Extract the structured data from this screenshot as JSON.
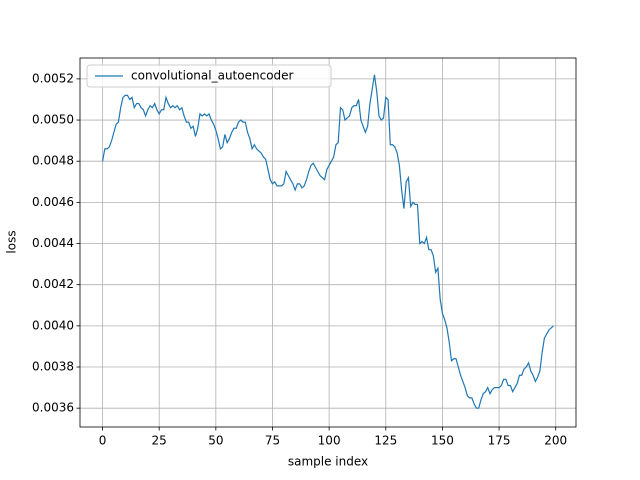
{
  "chart_data": {
    "type": "line",
    "xlabel": "sample index",
    "ylabel": "loss",
    "x": [
      0,
      1,
      2,
      3,
      4,
      5,
      6,
      7,
      8,
      9,
      10,
      11,
      12,
      13,
      14,
      15,
      16,
      17,
      18,
      19,
      20,
      21,
      22,
      23,
      24,
      25,
      26,
      27,
      28,
      29,
      30,
      31,
      32,
      33,
      34,
      35,
      36,
      37,
      38,
      39,
      40,
      41,
      42,
      43,
      44,
      45,
      46,
      47,
      48,
      49,
      50,
      51,
      52,
      53,
      54,
      55,
      56,
      57,
      58,
      59,
      60,
      61,
      62,
      63,
      64,
      65,
      66,
      67,
      68,
      69,
      70,
      71,
      72,
      73,
      74,
      75,
      76,
      77,
      78,
      79,
      80,
      81,
      82,
      83,
      84,
      85,
      86,
      87,
      88,
      89,
      90,
      91,
      92,
      93,
      94,
      95,
      96,
      97,
      98,
      99,
      100,
      101,
      102,
      103,
      104,
      105,
      106,
      107,
      108,
      109,
      110,
      111,
      112,
      113,
      114,
      115,
      116,
      117,
      118,
      119,
      120,
      121,
      122,
      123,
      124,
      125,
      126,
      127,
      128,
      129,
      130,
      131,
      132,
      133,
      134,
      135,
      136,
      137,
      138,
      139,
      140,
      141,
      142,
      143,
      144,
      145,
      146,
      147,
      148,
      149,
      150,
      151,
      152,
      153,
      154,
      155,
      156,
      157,
      158,
      159,
      160,
      161,
      162,
      163,
      164,
      165,
      166,
      167,
      168,
      169,
      170,
      171,
      172,
      173,
      174,
      175,
      176,
      177,
      178,
      179,
      180,
      181,
      182,
      183,
      184,
      185,
      186,
      187,
      188,
      189,
      190,
      191,
      192,
      193,
      194,
      195,
      196,
      197,
      198,
      199
    ],
    "series": [
      {
        "name": "convolutional_autoencoder",
        "color": "#1f77b4",
        "values": [
          0.0048,
          0.00486,
          0.00486,
          0.00487,
          0.0049,
          0.00494,
          0.00498,
          0.00499,
          0.00506,
          0.00511,
          0.00512,
          0.00512,
          0.0051,
          0.00511,
          0.00506,
          0.00508,
          0.00508,
          0.00506,
          0.00505,
          0.00502,
          0.00505,
          0.00507,
          0.00506,
          0.00508,
          0.00505,
          0.00503,
          0.00505,
          0.00505,
          0.00511,
          0.00508,
          0.00506,
          0.00507,
          0.00506,
          0.00507,
          0.00505,
          0.00506,
          0.00502,
          0.00499,
          0.00499,
          0.00496,
          0.00497,
          0.00492,
          0.00496,
          0.00503,
          0.00502,
          0.00503,
          0.00502,
          0.00503,
          0.005,
          0.00498,
          0.00495,
          0.00491,
          0.00486,
          0.00487,
          0.00493,
          0.00489,
          0.00491,
          0.00494,
          0.00496,
          0.00496,
          0.00499,
          0.005,
          0.00499,
          0.00499,
          0.00494,
          0.00491,
          0.00486,
          0.00488,
          0.00486,
          0.00485,
          0.00484,
          0.00482,
          0.00481,
          0.00476,
          0.00471,
          0.00469,
          0.0047,
          0.00468,
          0.00468,
          0.00468,
          0.00469,
          0.00475,
          0.00473,
          0.00471,
          0.00469,
          0.00466,
          0.00469,
          0.00469,
          0.00467,
          0.00468,
          0.00471,
          0.00475,
          0.00478,
          0.00479,
          0.00477,
          0.00475,
          0.00473,
          0.00472,
          0.00471,
          0.00476,
          0.00478,
          0.0048,
          0.00482,
          0.00488,
          0.00489,
          0.00506,
          0.00505,
          0.005,
          0.00501,
          0.00502,
          0.00506,
          0.00507,
          0.00507,
          0.0051,
          0.005,
          0.00497,
          0.00494,
          0.00497,
          0.00508,
          0.00515,
          0.00522,
          0.00514,
          0.00502,
          0.005,
          0.00501,
          0.00511,
          0.0051,
          0.00488,
          0.00488,
          0.00487,
          0.00484,
          0.00478,
          0.00466,
          0.00457,
          0.0047,
          0.00472,
          0.00458,
          0.0046,
          0.00459,
          0.00459,
          0.0044,
          0.00441,
          0.0044,
          0.00443,
          0.00437,
          0.00437,
          0.00434,
          0.00426,
          0.00428,
          0.00413,
          0.00406,
          0.00403,
          0.00399,
          0.00392,
          0.00383,
          0.00384,
          0.00384,
          0.0038,
          0.00376,
          0.00373,
          0.0037,
          0.00366,
          0.00365,
          0.00365,
          0.00362,
          0.0036,
          0.0036,
          0.00364,
          0.00367,
          0.00368,
          0.0037,
          0.00367,
          0.00369,
          0.0037,
          0.0037,
          0.0037,
          0.00371,
          0.00374,
          0.00374,
          0.00371,
          0.00371,
          0.00368,
          0.0037,
          0.00372,
          0.00376,
          0.00376,
          0.00379,
          0.0038,
          0.00382,
          0.00378,
          0.00376,
          0.00373,
          0.00375,
          0.00378,
          0.00387,
          0.00394,
          0.00396,
          0.00398,
          0.00399,
          0.004
        ]
      }
    ],
    "xlim": [
      -9.95,
      208.95
    ],
    "xticks": [
      0,
      25,
      50,
      75,
      100,
      125,
      150,
      175,
      200
    ],
    "ylim": [
      0.0035085,
      0.0053015
    ],
    "yticks": [
      0.0036,
      0.0038,
      {
        "value": 0.004,
        "label": "0.0040"
      },
      0.0042,
      0.0044,
      0.0046,
      0.0048,
      {
        "value": 0.005,
        "label": "0.0050"
      },
      0.0052
    ],
    "grid": true,
    "legend": "upper left"
  }
}
